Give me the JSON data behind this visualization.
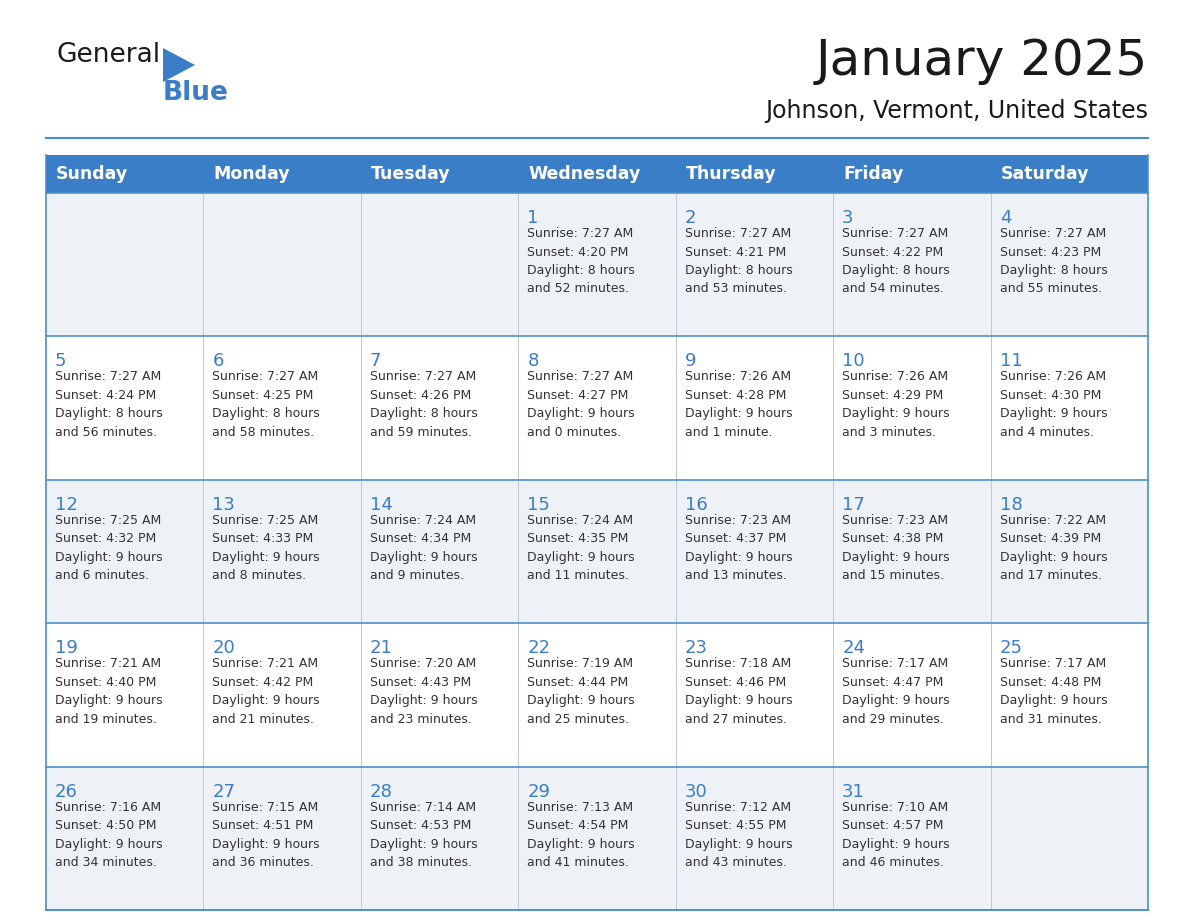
{
  "title": "January 2025",
  "subtitle": "Johnson, Vermont, United States",
  "days_of_week": [
    "Sunday",
    "Monday",
    "Tuesday",
    "Wednesday",
    "Thursday",
    "Friday",
    "Saturday"
  ],
  "header_bg_color": "#3a7ec8",
  "header_text_color": "#ffffff",
  "cell_bg_color": "#ffffff",
  "alt_row_bg_color": "#eef2f7",
  "grid_color": "#4a90c8",
  "day_number_color": "#3a7ec8",
  "text_color": "#333333",
  "logo_general_color": "#1a1a1a",
  "logo_blue_color": "#3a7ec8",
  "weeks": [
    [
      {
        "day": null,
        "info": ""
      },
      {
        "day": null,
        "info": ""
      },
      {
        "day": null,
        "info": ""
      },
      {
        "day": 1,
        "info": "Sunrise: 7:27 AM\nSunset: 4:20 PM\nDaylight: 8 hours\nand 52 minutes."
      },
      {
        "day": 2,
        "info": "Sunrise: 7:27 AM\nSunset: 4:21 PM\nDaylight: 8 hours\nand 53 minutes."
      },
      {
        "day": 3,
        "info": "Sunrise: 7:27 AM\nSunset: 4:22 PM\nDaylight: 8 hours\nand 54 minutes."
      },
      {
        "day": 4,
        "info": "Sunrise: 7:27 AM\nSunset: 4:23 PM\nDaylight: 8 hours\nand 55 minutes."
      }
    ],
    [
      {
        "day": 5,
        "info": "Sunrise: 7:27 AM\nSunset: 4:24 PM\nDaylight: 8 hours\nand 56 minutes."
      },
      {
        "day": 6,
        "info": "Sunrise: 7:27 AM\nSunset: 4:25 PM\nDaylight: 8 hours\nand 58 minutes."
      },
      {
        "day": 7,
        "info": "Sunrise: 7:27 AM\nSunset: 4:26 PM\nDaylight: 8 hours\nand 59 minutes."
      },
      {
        "day": 8,
        "info": "Sunrise: 7:27 AM\nSunset: 4:27 PM\nDaylight: 9 hours\nand 0 minutes."
      },
      {
        "day": 9,
        "info": "Sunrise: 7:26 AM\nSunset: 4:28 PM\nDaylight: 9 hours\nand 1 minute."
      },
      {
        "day": 10,
        "info": "Sunrise: 7:26 AM\nSunset: 4:29 PM\nDaylight: 9 hours\nand 3 minutes."
      },
      {
        "day": 11,
        "info": "Sunrise: 7:26 AM\nSunset: 4:30 PM\nDaylight: 9 hours\nand 4 minutes."
      }
    ],
    [
      {
        "day": 12,
        "info": "Sunrise: 7:25 AM\nSunset: 4:32 PM\nDaylight: 9 hours\nand 6 minutes."
      },
      {
        "day": 13,
        "info": "Sunrise: 7:25 AM\nSunset: 4:33 PM\nDaylight: 9 hours\nand 8 minutes."
      },
      {
        "day": 14,
        "info": "Sunrise: 7:24 AM\nSunset: 4:34 PM\nDaylight: 9 hours\nand 9 minutes."
      },
      {
        "day": 15,
        "info": "Sunrise: 7:24 AM\nSunset: 4:35 PM\nDaylight: 9 hours\nand 11 minutes."
      },
      {
        "day": 16,
        "info": "Sunrise: 7:23 AM\nSunset: 4:37 PM\nDaylight: 9 hours\nand 13 minutes."
      },
      {
        "day": 17,
        "info": "Sunrise: 7:23 AM\nSunset: 4:38 PM\nDaylight: 9 hours\nand 15 minutes."
      },
      {
        "day": 18,
        "info": "Sunrise: 7:22 AM\nSunset: 4:39 PM\nDaylight: 9 hours\nand 17 minutes."
      }
    ],
    [
      {
        "day": 19,
        "info": "Sunrise: 7:21 AM\nSunset: 4:40 PM\nDaylight: 9 hours\nand 19 minutes."
      },
      {
        "day": 20,
        "info": "Sunrise: 7:21 AM\nSunset: 4:42 PM\nDaylight: 9 hours\nand 21 minutes."
      },
      {
        "day": 21,
        "info": "Sunrise: 7:20 AM\nSunset: 4:43 PM\nDaylight: 9 hours\nand 23 minutes."
      },
      {
        "day": 22,
        "info": "Sunrise: 7:19 AM\nSunset: 4:44 PM\nDaylight: 9 hours\nand 25 minutes."
      },
      {
        "day": 23,
        "info": "Sunrise: 7:18 AM\nSunset: 4:46 PM\nDaylight: 9 hours\nand 27 minutes."
      },
      {
        "day": 24,
        "info": "Sunrise: 7:17 AM\nSunset: 4:47 PM\nDaylight: 9 hours\nand 29 minutes."
      },
      {
        "day": 25,
        "info": "Sunrise: 7:17 AM\nSunset: 4:48 PM\nDaylight: 9 hours\nand 31 minutes."
      }
    ],
    [
      {
        "day": 26,
        "info": "Sunrise: 7:16 AM\nSunset: 4:50 PM\nDaylight: 9 hours\nand 34 minutes."
      },
      {
        "day": 27,
        "info": "Sunrise: 7:15 AM\nSunset: 4:51 PM\nDaylight: 9 hours\nand 36 minutes."
      },
      {
        "day": 28,
        "info": "Sunrise: 7:14 AM\nSunset: 4:53 PM\nDaylight: 9 hours\nand 38 minutes."
      },
      {
        "day": 29,
        "info": "Sunrise: 7:13 AM\nSunset: 4:54 PM\nDaylight: 9 hours\nand 41 minutes."
      },
      {
        "day": 30,
        "info": "Sunrise: 7:12 AM\nSunset: 4:55 PM\nDaylight: 9 hours\nand 43 minutes."
      },
      {
        "day": 31,
        "info": "Sunrise: 7:10 AM\nSunset: 4:57 PM\nDaylight: 9 hours\nand 46 minutes."
      },
      {
        "day": null,
        "info": ""
      }
    ]
  ]
}
